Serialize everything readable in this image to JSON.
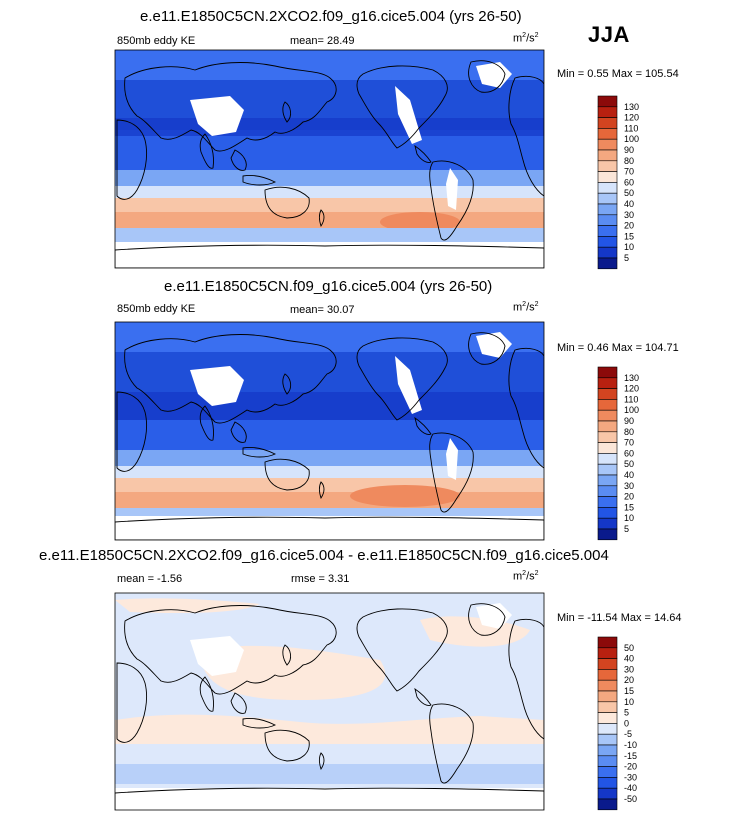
{
  "season": "JJA",
  "panels": [
    {
      "title": "e.e11.E1850C5CN.2XCO2.f09_g16.cice5.004 (yrs 26-50)",
      "left_label": "850mb eddy KE",
      "stat1": "mean=  28.49",
      "stat2": "",
      "units_base": "m",
      "units_sup1": "2",
      "units_mid": "/s",
      "units_sup2": "2",
      "minmax": "Min =   0.55 Max = 105.54",
      "colorbar": "abs"
    },
    {
      "title": "e.e11.E1850C5CN.f09_g16.cice5.004 (yrs 26-50)",
      "left_label": "850mb eddy KE",
      "stat1": "mean=  30.07",
      "stat2": "",
      "units_base": "m",
      "units_sup1": "2",
      "units_mid": "/s",
      "units_sup2": "2",
      "minmax": "Min =   0.46 Max = 104.71",
      "colorbar": "abs"
    },
    {
      "title": "e.e11.E1850C5CN.2XCO2.f09_g16.cice5.004 - e.e11.E1850C5CN.f09_g16.cice5.004",
      "left_label": "mean =  -1.56",
      "stat1": "rmse =   3.31",
      "stat2": "",
      "units_base": "m",
      "units_sup1": "2",
      "units_mid": "/s",
      "units_sup2": "2",
      "minmax": "Min = -11.54 Max =  14.64",
      "colorbar": "diff"
    }
  ],
  "chart_data": [
    {
      "type": "heatmap",
      "title": "e.e11.E1850C5CN.2XCO2.f09_g16.cice5.004 (yrs 26-50)",
      "variable": "850mb eddy KE",
      "mean": 28.49,
      "min": 0.55,
      "max": 105.54,
      "levels": [
        5,
        10,
        15,
        20,
        30,
        40,
        50,
        60,
        70,
        80,
        90,
        100,
        110,
        120,
        130
      ],
      "colors": [
        "#0a1a8c",
        "#1437c8",
        "#2255e6",
        "#3a6ff0",
        "#5a8cf2",
        "#7aa6f4",
        "#a8c6f8",
        "#d6e4fb",
        "#fbe6d8",
        "#f8c6a8",
        "#f4a880",
        "#ef8a5e",
        "#e6673a",
        "#d24420",
        "#b82010",
        "#8c0a0a"
      ]
    },
    {
      "type": "heatmap",
      "title": "e.e11.E1850C5CN.f09_g16.cice5.004 (yrs 26-50)",
      "variable": "850mb eddy KE",
      "mean": 30.07,
      "min": 0.46,
      "max": 104.71,
      "levels": [
        5,
        10,
        15,
        20,
        30,
        40,
        50,
        60,
        70,
        80,
        90,
        100,
        110,
        120,
        130
      ],
      "colors": [
        "#0a1a8c",
        "#1437c8",
        "#2255e6",
        "#3a6ff0",
        "#5a8cf2",
        "#7aa6f4",
        "#a8c6f8",
        "#d6e4fb",
        "#fbe6d8",
        "#f8c6a8",
        "#f4a880",
        "#ef8a5e",
        "#e6673a",
        "#d24420",
        "#b82010",
        "#8c0a0a"
      ]
    },
    {
      "type": "heatmap",
      "title": "e.e11.E1850C5CN.2XCO2.f09_g16.cice5.004 - e.e11.E1850C5CN.f09_g16.cice5.004",
      "mean": -1.56,
      "rmse": 3.31,
      "min": -11.54,
      "max": 14.64,
      "levels": [
        -50,
        -40,
        -30,
        -20,
        -15,
        -10,
        -5,
        0,
        5,
        10,
        15,
        20,
        30,
        40,
        50
      ],
      "colors": [
        "#0a1a8c",
        "#1437c8",
        "#2255e6",
        "#3a6ff0",
        "#5a8cf2",
        "#7aa6f4",
        "#a8c6f8",
        "#dde8fb",
        "#fde9dc",
        "#f8c6a8",
        "#f4a880",
        "#ef8a5e",
        "#e6673a",
        "#d24420",
        "#b82010",
        "#8c0a0a"
      ]
    }
  ]
}
